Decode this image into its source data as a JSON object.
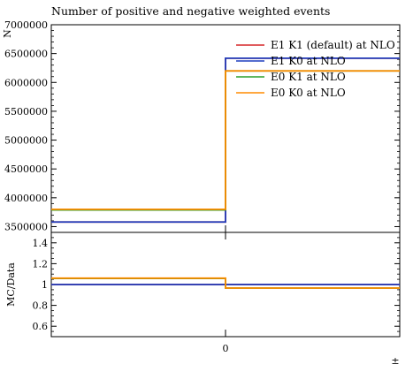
{
  "chart_data": [
    {
      "type": "line",
      "title": "Number of positive and negative weighted events",
      "ylabel": "N",
      "ylim": [
        3400000,
        7000000
      ],
      "x_edges": [
        -1,
        0,
        1
      ],
      "yticks": [
        3500000,
        4000000,
        4500000,
        5000000,
        5500000,
        6000000,
        6500000,
        7000000
      ],
      "ytick_labels": [
        "3500000",
        "4000000",
        "4500000",
        "5000000",
        "5500000",
        "6000000",
        "6500000",
        "7000000"
      ],
      "legend_position": "top-right",
      "series": [
        {
          "name": "E1 K1 (default) at NLO",
          "color": "#d62728",
          "values": [
            3580000,
            6420000
          ]
        },
        {
          "name": "E1 K0 at NLO",
          "color": "#1f3fbf",
          "values": [
            3580000,
            6420000
          ]
        },
        {
          "name": "E0 K1 at NLO",
          "color": "#2ca02c",
          "values": [
            3790000,
            6200000
          ]
        },
        {
          "name": "E0 K0 at NLO",
          "color": "#ff8c00",
          "values": [
            3800000,
            6200000
          ]
        }
      ]
    },
    {
      "type": "line",
      "ylabel": "MC/Data",
      "xlabel": "±",
      "ylim": [
        0.5,
        1.5
      ],
      "x_edges": [
        -1,
        0,
        1
      ],
      "yticks": [
        0.6,
        0.8,
        1.0,
        1.2,
        1.4
      ],
      "ytick_labels": [
        "0.6",
        "0.8",
        "1",
        "1.2",
        "1.4"
      ],
      "xticks": [
        0
      ],
      "xtick_labels": [
        "0"
      ],
      "reference_line": {
        "value": 1.0,
        "color": "#3a78e0"
      },
      "series": [
        {
          "name": "E1 K1 (default) at NLO",
          "color": "#d62728",
          "values": [
            1.0,
            1.0
          ]
        },
        {
          "name": "E1 K0 at NLO",
          "color": "#1f3fbf",
          "values": [
            1.0,
            1.0
          ]
        },
        {
          "name": "E0 K1 at NLO",
          "color": "#2ca02c",
          "values": [
            1.058,
            0.966
          ]
        },
        {
          "name": "E0 K0 at NLO",
          "color": "#ff8c00",
          "values": [
            1.061,
            0.966
          ]
        }
      ]
    }
  ]
}
